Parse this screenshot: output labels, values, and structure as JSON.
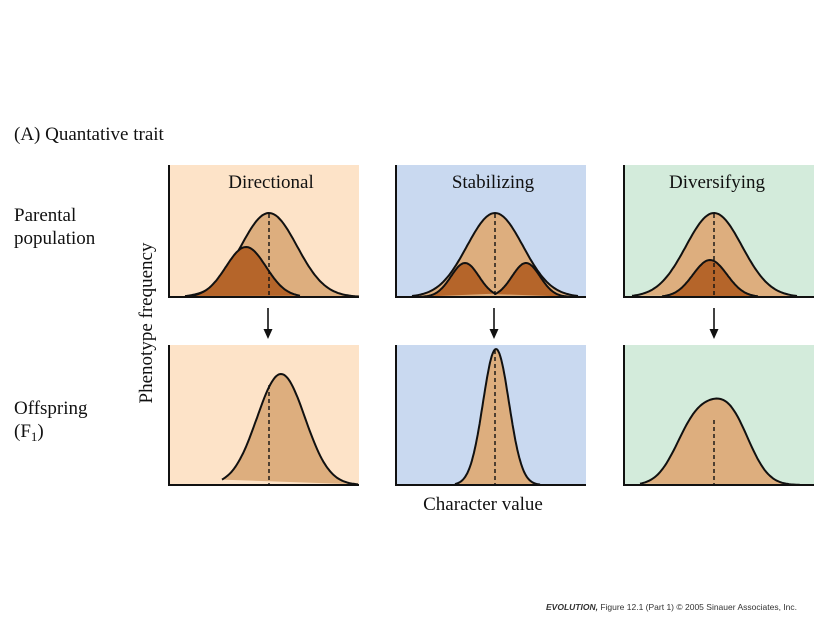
{
  "figure": {
    "part_title": "(A)  Quantative trait",
    "y_axis_label": "Phenotype frequency",
    "x_axis_label": "Character value",
    "row_labels": {
      "parental_line1": "Parental",
      "parental_line2": "population",
      "offspring_line1": "Offspring",
      "offspring_line2_pre": "(F",
      "offspring_line2_sub": "1",
      "offspring_line2_post": ")"
    },
    "columns": [
      {
        "name": "Directional",
        "background": "#fde3c8"
      },
      {
        "name": "Stabilizing",
        "background": "#c9d9f0"
      },
      {
        "name": "Diversifying",
        "background": "#d3ebdb"
      }
    ],
    "colors": {
      "population_fill": "#ddae7e",
      "selected_fill": "#b5652a",
      "outline": "#111111"
    },
    "credit": {
      "book": "EVOLUTION,",
      "figure": " Figure 12.1 (Part 1)",
      "rights": "  © 2005 Sinauer Associates, Inc."
    }
  }
}
